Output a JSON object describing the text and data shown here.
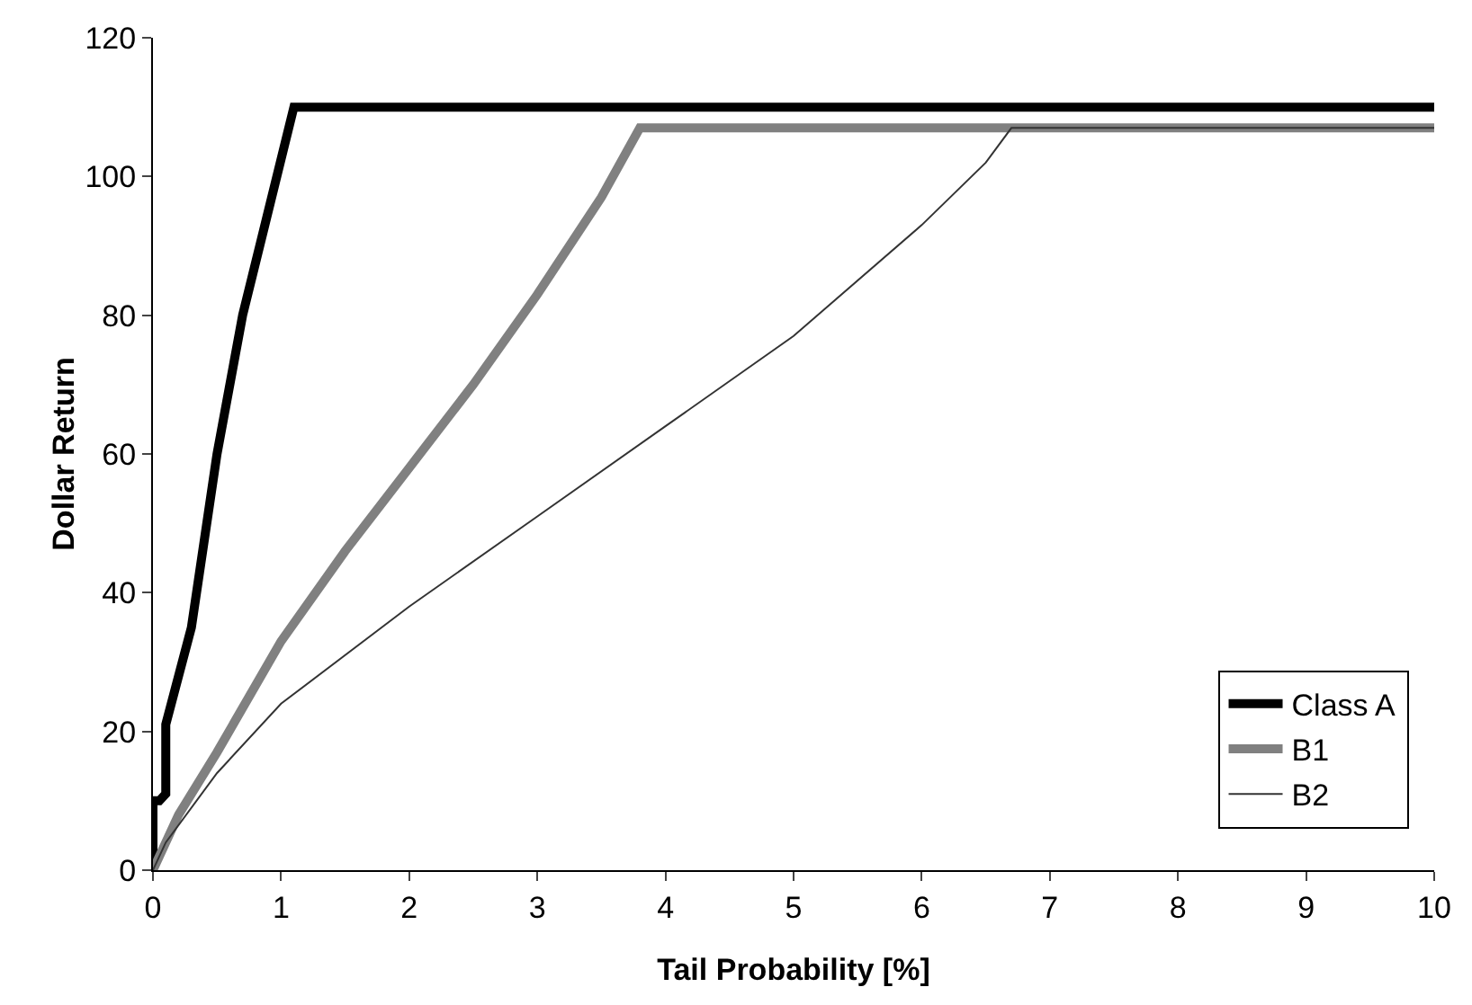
{
  "chart_data": {
    "type": "line",
    "xlabel": "Tail Probability [%]",
    "ylabel": "Dollar Return",
    "xlim": [
      0,
      10
    ],
    "xticks": [
      0,
      1,
      2,
      3,
      4,
      5,
      6,
      7,
      8,
      9,
      10
    ],
    "ylim": [
      0,
      120
    ],
    "yticks": [
      0,
      20,
      40,
      60,
      80,
      100,
      120
    ],
    "grid": false,
    "legend": "bottom right",
    "marker": "none",
    "line_style": "solid",
    "series": [
      {
        "name": "Class A",
        "color": "#000000",
        "x": [
          0,
          0,
          0.05,
          0.1,
          0.1,
          0.3,
          0.5,
          0.7,
          1.1,
          10
        ],
        "values": [
          0,
          10,
          10,
          11,
          21,
          35,
          60,
          80,
          110,
          110
        ]
      },
      {
        "name": "B1",
        "color": "#808080",
        "x": [
          0,
          0.2,
          0.5,
          1,
          1.5,
          2,
          2.5,
          3,
          3.5,
          3.8,
          10
        ],
        "values": [
          0,
          8,
          17,
          33,
          46,
          58,
          70,
          83,
          97,
          107,
          107
        ]
      },
      {
        "name": "B2",
        "color": "#333333",
        "x": [
          0,
          0.1,
          0.5,
          1,
          2,
          3,
          4,
          5,
          6,
          6.5,
          6.7,
          10
        ],
        "values": [
          0,
          4,
          14,
          24,
          38,
          51,
          64,
          77,
          93,
          102,
          107,
          107
        ]
      }
    ]
  }
}
